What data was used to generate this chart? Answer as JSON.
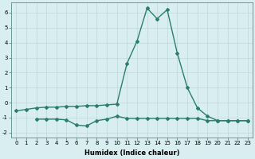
{
  "line1_x": [
    0,
    1,
    2,
    3,
    4,
    5,
    6,
    7,
    8,
    9,
    10,
    11,
    12,
    13,
    14,
    15,
    16,
    17,
    18,
    19,
    20,
    21,
    22,
    23
  ],
  "line1_y": [
    -0.55,
    -0.45,
    -0.35,
    -0.3,
    -0.3,
    -0.25,
    -0.25,
    -0.2,
    -0.2,
    -0.15,
    -0.1,
    2.6,
    4.1,
    6.3,
    5.6,
    6.2,
    3.3,
    1.0,
    -0.35,
    -0.9,
    -1.2,
    -1.2,
    -1.2,
    -1.2
  ],
  "line2_x": [
    2,
    3,
    4,
    5,
    6,
    7,
    8,
    9,
    10,
    11,
    12,
    13,
    14,
    15,
    16,
    17,
    18,
    19,
    20,
    21,
    22,
    23
  ],
  "line2_y": [
    -1.1,
    -1.1,
    -1.1,
    -1.15,
    -1.5,
    -1.55,
    -1.2,
    -1.1,
    -0.9,
    -1.05,
    -1.05,
    -1.05,
    -1.05,
    -1.05,
    -1.05,
    -1.05,
    -1.05,
    -1.2,
    -1.2,
    -1.2,
    -1.2,
    -1.2
  ],
  "color": "#2d7d6e",
  "bg_color": "#d8eef0",
  "grid_color": "#c0d8da",
  "xlabel": "Humidex (Indice chaleur)",
  "xlim": [
    -0.5,
    23.5
  ],
  "ylim": [
    -2.3,
    6.7
  ],
  "yticks": [
    -2,
    -1,
    0,
    1,
    2,
    3,
    4,
    5,
    6
  ],
  "xticks": [
    0,
    1,
    2,
    3,
    4,
    5,
    6,
    7,
    8,
    9,
    10,
    11,
    12,
    13,
    14,
    15,
    16,
    17,
    18,
    19,
    20,
    21,
    22,
    23
  ],
  "marker": "D",
  "marker_size": 2,
  "line_width": 1.0,
  "tick_fontsize": 5.0,
  "xlabel_fontsize": 6.0,
  "ylabel_fontsize": 5.5
}
